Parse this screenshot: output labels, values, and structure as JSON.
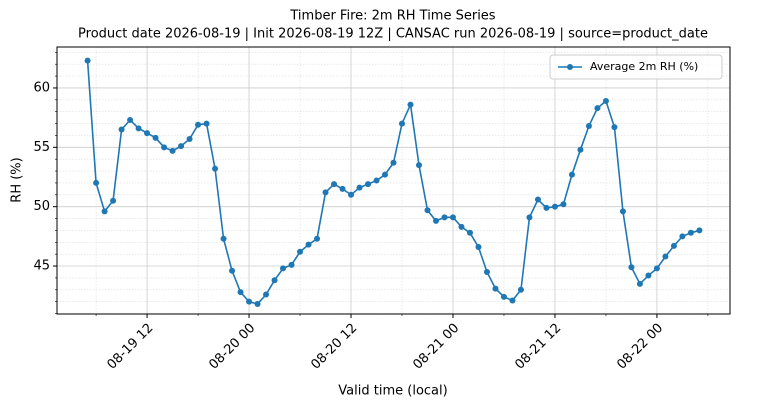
{
  "chart_data": {
    "type": "line",
    "title": "Timber Fire: 2m RH Time Series",
    "subtitle": "Product date 2026-08-19 | Init 2026-08-19 12Z | CANSAC run 2026-08-19 | source=product_date",
    "x_label": "Valid time (local)",
    "y_label": "RH (%)",
    "x": [
      "08-19 05",
      "08-19 06",
      "08-19 07",
      "08-19 08",
      "08-19 09",
      "08-19 10",
      "08-19 11",
      "08-19 12",
      "08-19 13",
      "08-19 14",
      "08-19 15",
      "08-19 16",
      "08-19 17",
      "08-19 18",
      "08-19 19",
      "08-19 20",
      "08-19 21",
      "08-19 22",
      "08-19 23",
      "08-20 00",
      "08-20 01",
      "08-20 02",
      "08-20 03",
      "08-20 04",
      "08-20 05",
      "08-20 06",
      "08-20 07",
      "08-20 08",
      "08-20 09",
      "08-20 10",
      "08-20 11",
      "08-20 12",
      "08-20 13",
      "08-20 14",
      "08-20 15",
      "08-20 16",
      "08-20 17",
      "08-20 18",
      "08-20 19",
      "08-20 20",
      "08-20 21",
      "08-20 22",
      "08-20 23",
      "08-21 00",
      "08-21 01",
      "08-21 02",
      "08-21 03",
      "08-21 04",
      "08-21 05",
      "08-21 06",
      "08-21 07",
      "08-21 08",
      "08-21 09",
      "08-21 10",
      "08-21 11",
      "08-21 12",
      "08-21 13",
      "08-21 14",
      "08-21 15",
      "08-21 16",
      "08-21 17",
      "08-21 18",
      "08-21 19",
      "08-21 20",
      "08-21 21",
      "08-21 22",
      "08-21 23",
      "08-22 00",
      "08-22 01",
      "08-22 02",
      "08-22 03",
      "08-22 04",
      "08-22 05"
    ],
    "series": [
      {
        "name": "Average 2m RH (%)",
        "color": "#1f77b4",
        "values": [
          62.3,
          52.0,
          49.6,
          50.5,
          56.5,
          57.3,
          56.6,
          56.2,
          55.8,
          55.0,
          54.7,
          55.1,
          55.7,
          56.9,
          57.0,
          53.2,
          47.3,
          44.6,
          42.8,
          42.0,
          41.8,
          42.6,
          43.8,
          44.8,
          45.1,
          46.2,
          46.8,
          47.3,
          51.2,
          51.9,
          51.5,
          51.0,
          51.6,
          51.9,
          52.2,
          52.7,
          53.7,
          57.0,
          58.6,
          53.5,
          49.7,
          48.8,
          49.1,
          49.1,
          48.3,
          47.8,
          46.6,
          44.5,
          43.1,
          42.4,
          42.1,
          43.0,
          49.1,
          50.6,
          49.9,
          50.0,
          50.2,
          52.7,
          54.8,
          56.8,
          58.3,
          58.9,
          56.7,
          49.6,
          44.9,
          43.5,
          44.2,
          44.8,
          45.8,
          46.7,
          47.5,
          47.8,
          48.0
        ]
      }
    ],
    "xlim": [
      "08-19 01:24",
      "08-22 08:36"
    ],
    "xticks": [
      "08-19 12",
      "08-20 00",
      "08-20 12",
      "08-21 00",
      "08-21 12",
      "08-22 00"
    ],
    "xminorticks": [
      "08-19 06",
      "08-19 18",
      "08-20 06",
      "08-20 18",
      "08-21 06",
      "08-21 18",
      "08-22 06"
    ],
    "ylim": [
      40.96,
      63.45
    ],
    "yticks": [
      45,
      50,
      55,
      60
    ],
    "yminorticks": [
      41,
      42,
      43,
      44,
      46,
      47,
      48,
      49,
      51,
      52,
      53,
      54,
      56,
      57,
      58,
      59,
      61,
      62,
      63
    ],
    "grid": true,
    "markers": true,
    "legend": "upper right"
  }
}
